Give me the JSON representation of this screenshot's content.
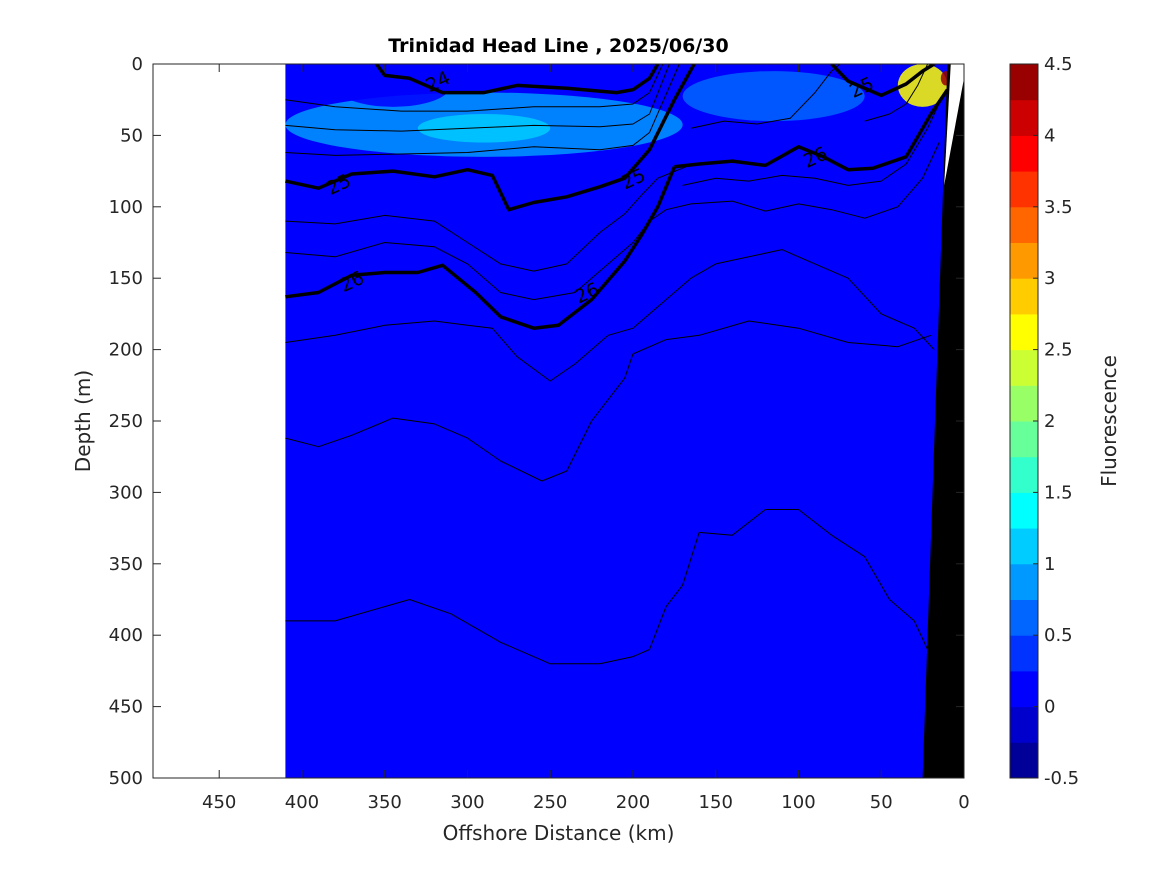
{
  "chart_data": {
    "type": "heatmap",
    "title": "Trinidad Head Line , 2025/06/30",
    "xlabel": "Offshore Distance (km)",
    "ylabel": "Depth (m)",
    "colorbar_label": "Fluorescence",
    "xlim": [
      490,
      0
    ],
    "ylim": [
      0,
      500
    ],
    "x_reversed": true,
    "y_reversed": true,
    "x_ticks": [
      450,
      400,
      350,
      300,
      250,
      200,
      150,
      100,
      50,
      0
    ],
    "y_ticks": [
      0,
      50,
      100,
      150,
      200,
      250,
      300,
      350,
      400,
      450,
      500
    ],
    "colorbar_ticks": [
      4.5,
      4,
      3.5,
      3,
      2.5,
      2,
      1.5,
      1,
      0.5,
      0,
      -0.5
    ],
    "colorbar_range": [
      -0.5,
      4.5
    ],
    "colorbar_levels": 20,
    "colormap": "jet",
    "data_extent_x": [
      410,
      0
    ],
    "background_field_value": 0.15,
    "fluorescence_features": [
      {
        "x_range": [
          410,
          170
        ],
        "depth_range": [
          20,
          65
        ],
        "value": 0.8
      },
      {
        "x_range": [
          330,
          250
        ],
        "depth_range": [
          35,
          55
        ],
        "value": 1.0
      },
      {
        "x_range": [
          170,
          60
        ],
        "depth_range": [
          5,
          40
        ],
        "value": 0.7
      },
      {
        "x_range": [
          40,
          10
        ],
        "depth_range": [
          0,
          30
        ],
        "value": 2.5
      },
      {
        "x_range": [
          14,
          8
        ],
        "depth_range": [
          5,
          15
        ],
        "value": 4.5
      },
      {
        "x_range": [
          380,
          310
        ],
        "depth_range": [
          0,
          30
        ],
        "value": 0.0
      }
    ],
    "bathymetry": {
      "color": "#000000",
      "points": [
        [
          0,
          0
        ],
        [
          10,
          0
        ],
        [
          25,
          500
        ],
        [
          0,
          500
        ]
      ]
    },
    "density_contours": [
      {
        "label": "24",
        "bold": true,
        "points": [
          [
            355,
            0
          ],
          [
            350,
            8
          ],
          [
            335,
            10
          ],
          [
            315,
            20
          ],
          [
            290,
            20
          ],
          [
            270,
            15
          ],
          [
            240,
            17
          ],
          [
            210,
            20
          ],
          [
            200,
            18
          ],
          [
            190,
            10
          ],
          [
            185,
            0
          ]
        ]
      },
      {
        "label": "25",
        "bold": true,
        "points": [
          [
            410,
            82
          ],
          [
            390,
            87
          ],
          [
            370,
            77
          ],
          [
            345,
            75
          ],
          [
            320,
            79
          ],
          [
            300,
            74
          ],
          [
            285,
            78
          ],
          [
            275,
            102
          ],
          [
            260,
            97
          ],
          [
            240,
            93
          ],
          [
            220,
            86
          ],
          [
            205,
            80
          ],
          [
            190,
            60
          ],
          [
            175,
            25
          ],
          [
            163,
            0
          ]
        ]
      },
      {
        "label": "25",
        "bold": true,
        "points": [
          [
            175,
            72
          ],
          [
            160,
            70
          ],
          [
            140,
            68
          ],
          [
            120,
            71
          ],
          [
            100,
            58
          ],
          [
            85,
            65
          ],
          [
            70,
            74
          ],
          [
            55,
            73
          ],
          [
            35,
            65
          ],
          [
            20,
            35
          ],
          [
            10,
            18
          ]
        ]
      },
      {
        "label": "25",
        "bold": true,
        "points": [
          [
            80,
            0
          ],
          [
            70,
            12
          ],
          [
            50,
            22
          ],
          [
            35,
            14
          ],
          [
            25,
            5
          ],
          [
            18,
            0
          ]
        ]
      },
      {
        "label": "26",
        "bold": true,
        "points": [
          [
            410,
            163
          ],
          [
            390,
            160
          ],
          [
            370,
            148
          ],
          [
            350,
            146
          ],
          [
            330,
            146
          ],
          [
            315,
            141
          ],
          [
            295,
            160
          ],
          [
            280,
            177
          ],
          [
            260,
            185
          ],
          [
            245,
            183
          ],
          [
            225,
            165
          ],
          [
            205,
            138
          ],
          [
            195,
            120
          ],
          [
            185,
            100
          ],
          [
            175,
            72
          ]
        ]
      },
      {
        "label": "",
        "bold": false,
        "points": [
          [
            410,
            195
          ],
          [
            380,
            190
          ],
          [
            350,
            183
          ],
          [
            320,
            180
          ],
          [
            300,
            183
          ],
          [
            285,
            185
          ],
          [
            270,
            205
          ],
          [
            250,
            222
          ],
          [
            235,
            210
          ],
          [
            215,
            190
          ],
          [
            200,
            185
          ],
          [
            180,
            165
          ],
          [
            165,
            150
          ],
          [
            150,
            140
          ],
          [
            130,
            135
          ],
          [
            110,
            130
          ],
          [
            90,
            140
          ],
          [
            70,
            150
          ],
          [
            50,
            175
          ],
          [
            30,
            185
          ],
          [
            18,
            200
          ]
        ]
      },
      {
        "label": "",
        "bold": false,
        "points": [
          [
            410,
            262
          ],
          [
            390,
            268
          ],
          [
            370,
            260
          ],
          [
            345,
            248
          ],
          [
            320,
            252
          ],
          [
            300,
            262
          ],
          [
            280,
            278
          ],
          [
            255,
            292
          ],
          [
            240,
            285
          ],
          [
            225,
            250
          ],
          [
            205,
            220
          ],
          [
            200,
            203
          ],
          [
            180,
            193
          ],
          [
            160,
            190
          ],
          [
            130,
            180
          ],
          [
            100,
            185
          ],
          [
            70,
            195
          ],
          [
            40,
            198
          ],
          [
            20,
            190
          ]
        ]
      },
      {
        "label": "",
        "bold": false,
        "points": [
          [
            410,
            390
          ],
          [
            380,
            390
          ],
          [
            350,
            380
          ],
          [
            335,
            375
          ],
          [
            310,
            385
          ],
          [
            280,
            405
          ],
          [
            250,
            420
          ],
          [
            220,
            420
          ],
          [
            200,
            415
          ],
          [
            190,
            410
          ],
          [
            180,
            380
          ],
          [
            170,
            365
          ],
          [
            160,
            328
          ],
          [
            140,
            330
          ],
          [
            120,
            312
          ],
          [
            100,
            312
          ],
          [
            80,
            330
          ],
          [
            60,
            345
          ],
          [
            45,
            375
          ],
          [
            30,
            390
          ],
          [
            22,
            410
          ]
        ]
      },
      {
        "label": "",
        "bold": false,
        "points": [
          [
            410,
            25
          ],
          [
            380,
            30
          ],
          [
            340,
            33
          ],
          [
            300,
            33
          ],
          [
            260,
            30
          ],
          [
            220,
            30
          ],
          [
            200,
            28
          ],
          [
            190,
            20
          ],
          [
            182,
            0
          ]
        ]
      },
      {
        "label": "",
        "bold": false,
        "points": [
          [
            410,
            43
          ],
          [
            380,
            46
          ],
          [
            340,
            47
          ],
          [
            300,
            45
          ],
          [
            260,
            43
          ],
          [
            220,
            44
          ],
          [
            200,
            42
          ],
          [
            190,
            35
          ],
          [
            178,
            0
          ]
        ]
      },
      {
        "label": "",
        "bold": false,
        "points": [
          [
            410,
            62
          ],
          [
            380,
            64
          ],
          [
            340,
            63
          ],
          [
            300,
            62
          ],
          [
            260,
            58
          ],
          [
            220,
            60
          ],
          [
            200,
            57
          ],
          [
            190,
            48
          ],
          [
            172,
            0
          ]
        ]
      },
      {
        "label": "",
        "bold": false,
        "points": [
          [
            410,
            110
          ],
          [
            380,
            112
          ],
          [
            350,
            106
          ],
          [
            320,
            110
          ],
          [
            300,
            125
          ],
          [
            280,
            140
          ],
          [
            260,
            145
          ],
          [
            240,
            140
          ],
          [
            220,
            118
          ],
          [
            205,
            105
          ],
          [
            195,
            92
          ],
          [
            185,
            80
          ],
          [
            168,
            72
          ]
        ]
      },
      {
        "label": "",
        "bold": false,
        "points": [
          [
            410,
            132
          ],
          [
            380,
            135
          ],
          [
            350,
            125
          ],
          [
            320,
            128
          ],
          [
            300,
            140
          ],
          [
            280,
            160
          ],
          [
            260,
            165
          ],
          [
            235,
            160
          ],
          [
            215,
            140
          ],
          [
            200,
            125
          ],
          [
            190,
            110
          ],
          [
            180,
            102
          ],
          [
            165,
            98
          ],
          [
            140,
            96
          ],
          [
            120,
            103
          ],
          [
            100,
            98
          ],
          [
            80,
            102
          ],
          [
            60,
            108
          ],
          [
            40,
            100
          ],
          [
            25,
            80
          ],
          [
            15,
            55
          ]
        ]
      },
      {
        "label": "",
        "bold": false,
        "points": [
          [
            170,
            85
          ],
          [
            150,
            80
          ],
          [
            130,
            82
          ],
          [
            110,
            78
          ],
          [
            90,
            80
          ],
          [
            70,
            85
          ],
          [
            50,
            82
          ],
          [
            35,
            70
          ],
          [
            22,
            45
          ],
          [
            14,
            25
          ]
        ]
      },
      {
        "label": "",
        "bold": false,
        "points": [
          [
            165,
            45
          ],
          [
            145,
            40
          ],
          [
            125,
            42
          ],
          [
            105,
            38
          ],
          [
            90,
            20
          ],
          [
            80,
            5
          ],
          [
            75,
            0
          ]
        ]
      },
      {
        "label": "",
        "bold": false,
        "points": [
          [
            60,
            40
          ],
          [
            45,
            35
          ],
          [
            35,
            28
          ],
          [
            28,
            15
          ],
          [
            22,
            0
          ]
        ]
      }
    ],
    "contour_label_positions": [
      {
        "text": "24",
        "x": 318,
        "y": 12
      },
      {
        "text": "25",
        "x": 378,
        "y": 84
      },
      {
        "text": "25",
        "x": 200,
        "y": 80
      },
      {
        "text": "25",
        "x": 62,
        "y": 16
      },
      {
        "text": "26",
        "x": 370,
        "y": 152
      },
      {
        "text": "26",
        "x": 228,
        "y": 160
      },
      {
        "text": "26",
        "x": 90,
        "y": 65
      }
    ]
  }
}
